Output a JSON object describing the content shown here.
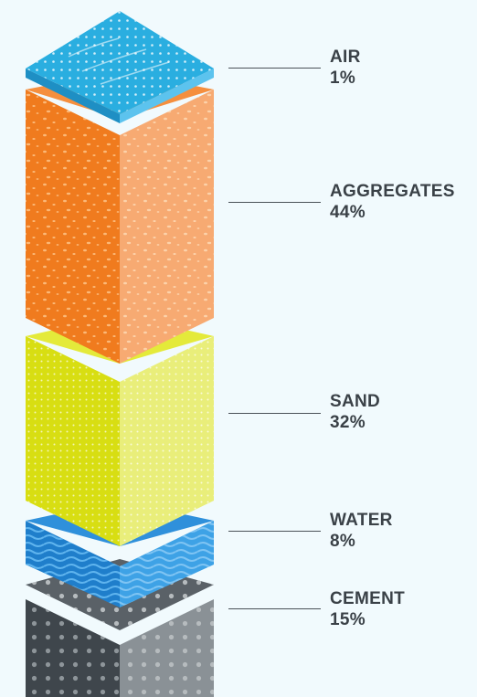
{
  "layers": [
    {
      "id": "air",
      "name": "AIR",
      "value": "1%",
      "color": "#2AAEE0"
    },
    {
      "id": "aggregates",
      "name": "AGGREGATES",
      "value": "44%",
      "color": "#F07B1E"
    },
    {
      "id": "sand",
      "name": "SAND",
      "value": "32%",
      "color": "#DDE320"
    },
    {
      "id": "water",
      "name": "WATER",
      "value": "8%",
      "color": "#2E8ED8"
    },
    {
      "id": "cement",
      "name": "CEMENT",
      "value": "15%",
      "color": "#4D545A"
    }
  ]
}
